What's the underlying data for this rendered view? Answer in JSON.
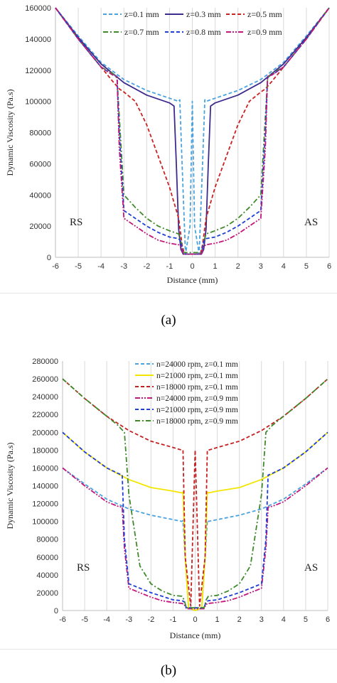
{
  "chart_data": [
    {
      "panel": "(a)",
      "type": "line",
      "xlabel": "Distance (mm)",
      "ylabel": "Dynamic Viscosity (Pa.s)",
      "xlim": [
        -6,
        6
      ],
      "ylim": [
        0,
        160000
      ],
      "x_ticks": [
        "-6",
        "-5",
        "-4",
        "-3",
        "-2",
        "-1",
        "0",
        "1",
        "2",
        "3",
        "4",
        "5",
        "6"
      ],
      "y_ticks": [
        "0",
        "20000",
        "40000",
        "60000",
        "80000",
        "100000",
        "120000",
        "140000",
        "160000"
      ],
      "grid": "vertical",
      "legend_position": "top-center",
      "annotations": {
        "left": "RS",
        "right": "AS"
      },
      "series": [
        {
          "name": "z=0.1 mm",
          "color": "#4aa3df",
          "dash": "dashed",
          "x": [
            -6,
            -5,
            -4,
            -3,
            -2,
            -1,
            -0.6,
            -0.55,
            -0.45,
            -0.3,
            -0.1,
            0,
            0.1,
            0.3,
            0.45,
            0.55,
            0.6,
            1,
            2,
            3,
            4,
            5,
            6
          ],
          "y": [
            160000,
            142000,
            125000,
            114000,
            107000,
            102000,
            100000,
            101000,
            60000,
            2000,
            20000,
            100000,
            20000,
            2000,
            60000,
            101000,
            100000,
            102000,
            107000,
            114000,
            125000,
            142000,
            160000
          ]
        },
        {
          "name": "z=0.3 mm",
          "color": "#3d2b8c",
          "dash": "solid",
          "x": [
            -6,
            -5,
            -4,
            -3,
            -2,
            -1,
            -0.8,
            -0.7,
            -0.6,
            -0.5,
            -0.4,
            -0.3,
            0.3,
            0.4,
            0.5,
            0.6,
            0.7,
            0.8,
            1,
            2,
            3,
            4,
            5,
            6
          ],
          "y": [
            160000,
            141000,
            124000,
            112000,
            104000,
            99000,
            97000,
            60000,
            18000,
            5000,
            2000,
            2000,
            2000,
            2000,
            5000,
            18000,
            60000,
            97000,
            99000,
            104000,
            112000,
            124000,
            141000,
            160000
          ]
        },
        {
          "name": "z=0.5 mm",
          "color": "#cc2222",
          "dash": "dashed",
          "x": [
            -6,
            -5,
            -4,
            -3.5,
            -3.2,
            -3,
            -2.5,
            -2,
            -1.5,
            -1,
            -0.6,
            -0.45,
            -0.35,
            0.35,
            0.45,
            0.6,
            1,
            1.5,
            2,
            2.5,
            3,
            3.2,
            3.5,
            4,
            5,
            6
          ],
          "y": [
            160000,
            140000,
            122000,
            113000,
            108000,
            106000,
            100000,
            85000,
            65000,
            45000,
            25000,
            8000,
            2000,
            2000,
            8000,
            25000,
            45000,
            65000,
            85000,
            100000,
            106000,
            108000,
            113000,
            122000,
            140000,
            160000
          ]
        },
        {
          "name": "z=0.7 mm",
          "color": "#3f8a2a",
          "dash": "dashdot",
          "x": [
            -6,
            -5,
            -4,
            -3.5,
            -3.3,
            -3.2,
            -3,
            -2.5,
            -2,
            -1.5,
            -1,
            -0.6,
            -0.5,
            -0.4,
            0.4,
            0.5,
            0.6,
            1,
            1.5,
            2,
            2.5,
            3,
            3.2,
            3.3,
            3.5,
            4,
            5,
            6
          ],
          "y": [
            160000,
            140000,
            122000,
            118000,
            115000,
            90000,
            40000,
            32000,
            25000,
            20000,
            17000,
            15000,
            10000,
            3000,
            3000,
            10000,
            15000,
            17000,
            20000,
            25000,
            32000,
            40000,
            90000,
            115000,
            118000,
            122000,
            140000,
            160000
          ]
        },
        {
          "name": "z=0.8 mm",
          "color": "#1f3fd6",
          "dash": "dashed",
          "x": [
            -6,
            -5,
            -4,
            -3.5,
            -3.3,
            -3.2,
            -3,
            -2.5,
            -2,
            -1.5,
            -1,
            -0.6,
            -0.5,
            -0.4,
            0.4,
            0.5,
            0.6,
            1,
            1.5,
            2,
            2.5,
            3,
            3.2,
            3.3,
            3.5,
            4,
            5,
            6
          ],
          "y": [
            160000,
            140000,
            122000,
            117000,
            116000,
            80000,
            30000,
            25000,
            20000,
            16000,
            13000,
            12000,
            10000,
            2000,
            2000,
            10000,
            12000,
            13000,
            16000,
            20000,
            25000,
            30000,
            80000,
            116000,
            117000,
            122000,
            140000,
            160000
          ]
        },
        {
          "name": "z=0.9 mm",
          "color": "#c2187a",
          "dash": "dashdotdot",
          "x": [
            -6,
            -5,
            -4,
            -3.5,
            -3.3,
            -3.2,
            -3,
            -2.5,
            -2,
            -1.5,
            -1,
            -0.6,
            -0.5,
            -0.4,
            0.4,
            0.5,
            0.6,
            1,
            1.5,
            2,
            2.5,
            3,
            3.2,
            3.3,
            3.5,
            4,
            5,
            6
          ],
          "y": [
            160000,
            140000,
            122000,
            117000,
            116000,
            70000,
            25000,
            20000,
            15000,
            11000,
            9000,
            8000,
            7000,
            2000,
            2000,
            7000,
            8000,
            9000,
            11000,
            15000,
            20000,
            25000,
            70000,
            116000,
            117000,
            122000,
            140000,
            160000
          ]
        }
      ]
    },
    {
      "panel": "(b)",
      "type": "line",
      "xlabel": "Distance (mm)",
      "ylabel": "Dynamic Viscosity (Pa.s)",
      "xlim": [
        -6,
        6
      ],
      "ylim": [
        0,
        280000
      ],
      "x_ticks": [
        "-6",
        "-5",
        "-4",
        "-3",
        "-2",
        "-1",
        "0",
        "1",
        "2",
        "3",
        "4",
        "5",
        "6"
      ],
      "y_ticks": [
        "0",
        "20000",
        "40000",
        "60000",
        "80000",
        "100000",
        "120000",
        "140000",
        "160000",
        "180000",
        "200000",
        "220000",
        "240000",
        "260000",
        "280000"
      ],
      "grid": "vertical",
      "legend_position": "top-center",
      "annotations": {
        "left": "RS",
        "right": "AS"
      },
      "series": [
        {
          "name": "n=24000 rpm, z=0.1 mm",
          "color": "#4aa3df",
          "dash": "dashed",
          "x": [
            -6,
            -5,
            -4,
            -3,
            -2,
            -1,
            -0.6,
            -0.55,
            -0.45,
            -0.3,
            0,
            0.3,
            0.45,
            0.55,
            0.6,
            1,
            2,
            3,
            4,
            5,
            6
          ],
          "y": [
            160000,
            142000,
            125000,
            114000,
            107000,
            102000,
            100000,
            101000,
            60000,
            3000,
            0,
            3000,
            60000,
            101000,
            100000,
            102000,
            107000,
            114000,
            125000,
            142000,
            160000
          ]
        },
        {
          "name": "n=21000 rpm, z=0.1 mm",
          "color": "#f2e600",
          "dash": "solid",
          "x": [
            -6,
            -5,
            -4,
            -3,
            -2,
            -1,
            -0.6,
            -0.55,
            -0.45,
            -0.3,
            0,
            0.3,
            0.45,
            0.55,
            0.6,
            1,
            2,
            3,
            4,
            5,
            6
          ],
          "y": [
            200000,
            178000,
            160000,
            147000,
            138000,
            134000,
            132000,
            133000,
            60000,
            3000,
            0,
            3000,
            60000,
            133000,
            132000,
            134000,
            138000,
            147000,
            160000,
            178000,
            200000
          ]
        },
        {
          "name": "n=18000 rpm, z=0.1 mm",
          "color": "#c42020",
          "dash": "dashed",
          "x": [
            -6,
            -5,
            -4,
            -3,
            -2,
            -1,
            -0.6,
            -0.55,
            -0.45,
            -0.2,
            0,
            0.2,
            0.45,
            0.55,
            0.6,
            1,
            2,
            3,
            4,
            5,
            6
          ],
          "y": [
            260000,
            238000,
            218000,
            202000,
            190000,
            183000,
            180000,
            180000,
            60000,
            5000,
            180000,
            5000,
            60000,
            180000,
            180000,
            183000,
            190000,
            202000,
            218000,
            238000,
            260000
          ]
        },
        {
          "name": "n=24000 rpm, z=0.9 mm",
          "color": "#c2187a",
          "dash": "dashdotdot",
          "x": [
            -6,
            -5,
            -4,
            -3.5,
            -3.3,
            -3.2,
            -3,
            -2.5,
            -2,
            -1.5,
            -1,
            -0.6,
            -0.5,
            -0.4,
            0.4,
            0.5,
            0.6,
            1,
            1.5,
            2,
            2.5,
            3,
            3.2,
            3.3,
            3.5,
            4,
            5,
            6
          ],
          "y": [
            160000,
            140000,
            122000,
            117000,
            116000,
            70000,
            25000,
            20000,
            15000,
            11000,
            9000,
            8000,
            7000,
            2000,
            2000,
            7000,
            8000,
            9000,
            11000,
            15000,
            20000,
            25000,
            70000,
            116000,
            117000,
            122000,
            140000,
            160000
          ]
        },
        {
          "name": "n=21000 rpm, z=0.9 mm",
          "color": "#1f3fd6",
          "dash": "dashed",
          "x": [
            -6,
            -5,
            -4,
            -3.5,
            -3.3,
            -3.2,
            -3,
            -2.5,
            -2,
            -1.5,
            -1,
            -0.6,
            -0.5,
            -0.4,
            0.4,
            0.5,
            0.6,
            1,
            1.5,
            2,
            2.5,
            3,
            3.2,
            3.3,
            3.5,
            4,
            5,
            6
          ],
          "y": [
            200000,
            178000,
            160000,
            154000,
            152000,
            80000,
            30000,
            25000,
            20000,
            16000,
            12000,
            11000,
            10000,
            3000,
            3000,
            10000,
            11000,
            12000,
            16000,
            20000,
            25000,
            30000,
            80000,
            152000,
            154000,
            160000,
            178000,
            200000
          ]
        },
        {
          "name": "n=18000 rpm, z=0.9 mm",
          "color": "#3f8a2a",
          "dash": "dashdot",
          "x": [
            -6,
            -5,
            -4,
            -3.5,
            -3.2,
            -3,
            -2.5,
            -2,
            -1.5,
            -1,
            -0.6,
            -0.5,
            -0.4,
            0.4,
            0.5,
            0.6,
            1,
            1.5,
            2,
            2.5,
            3,
            3.2,
            3.5,
            4,
            5,
            6
          ],
          "y": [
            260000,
            238000,
            218000,
            208000,
            200000,
            130000,
            50000,
            30000,
            22000,
            17000,
            16000,
            12000,
            3000,
            3000,
            12000,
            16000,
            17000,
            22000,
            30000,
            50000,
            130000,
            200000,
            208000,
            218000,
            238000,
            260000
          ]
        }
      ]
    }
  ],
  "captions": {
    "a": "(a)",
    "b": "(b)"
  }
}
